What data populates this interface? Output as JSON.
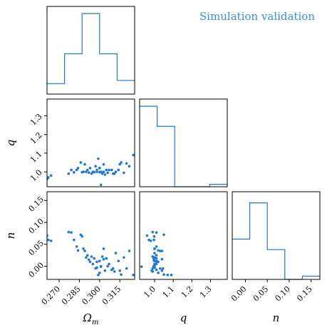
{
  "title": "Simulation validation",
  "colors": {
    "series": "#1f77d4",
    "title": "#3a8fd8"
  },
  "chart_data": {
    "type": "scatter",
    "variables": [
      {
        "name": "Omega_m",
        "label": "Ωm",
        "range": [
          0.261,
          0.326
        ],
        "ticks": [
          "0.270",
          "0.285",
          "0.300",
          "0.315"
        ],
        "tick_values": [
          0.27,
          0.285,
          0.3,
          0.315
        ]
      },
      {
        "name": "q",
        "label": "q",
        "range": [
          0.92,
          1.39
        ],
        "ticks_x": [
          "1.0",
          "1.1",
          "1.2",
          "1.3"
        ],
        "tick_values_x": [
          1.0,
          1.1,
          1.2,
          1.3
        ],
        "ticks_y": [
          "1.0",
          "1.1",
          "1.2",
          "1.3"
        ],
        "tick_values_y": [
          1.0,
          1.1,
          1.2,
          1.3
        ]
      },
      {
        "name": "n",
        "label": "n",
        "range": [
          -0.03,
          0.17
        ],
        "ticks": [
          "0.00",
          "0.05",
          "0.10",
          "0.15"
        ],
        "tick_values": [
          0.0,
          0.05,
          0.1,
          0.15
        ]
      }
    ],
    "histograms": {
      "Omega_m": {
        "edges": [
          0.261,
          0.274,
          0.287,
          0.3,
          0.313,
          0.326
        ],
        "heights": [
          0.13,
          0.5,
          1.0,
          0.5,
          0.17
        ]
      },
      "q": {
        "edges": [
          0.92,
          1.014,
          1.108,
          1.202,
          1.296,
          1.39
        ],
        "heights": [
          1.0,
          0.75,
          0.0,
          0.0,
          0.03
        ]
      },
      "n": {
        "edges": [
          -0.03,
          0.01,
          0.05,
          0.09,
          0.13,
          0.17
        ],
        "heights": [
          0.5,
          0.95,
          0.37,
          0.0,
          0.04
        ]
      }
    },
    "points": [
      {
        "Omega_m": 0.261,
        "q": 0.96,
        "n": 0.07
      },
      {
        "Omega_m": 0.262,
        "q": 0.97,
        "n": 0.06
      },
      {
        "Omega_m": 0.264,
        "q": 0.98,
        "n": 0.058
      },
      {
        "Omega_m": 0.277,
        "q": 0.99,
        "n": 0.078
      },
      {
        "Omega_m": 0.279,
        "q": 1.01,
        "n": 0.077
      },
      {
        "Omega_m": 0.281,
        "q": 0.997,
        "n": 0.06
      },
      {
        "Omega_m": 0.283,
        "q": 1.01,
        "n": 0.045
      },
      {
        "Omega_m": 0.284,
        "q": 1.02,
        "n": 0.036
      },
      {
        "Omega_m": 0.286,
        "q": 1.05,
        "n": 0.072
      },
      {
        "Omega_m": 0.287,
        "q": 0.998,
        "n": 0.068
      },
      {
        "Omega_m": 0.288,
        "q": 1.0,
        "n": 0.04
      },
      {
        "Omega_m": 0.289,
        "q": 1.04,
        "n": 0.035
      },
      {
        "Omega_m": 0.29,
        "q": 1.0,
        "n": 0.02
      },
      {
        "Omega_m": 0.291,
        "q": 1.01,
        "n": 0.025
      },
      {
        "Omega_m": 0.292,
        "q": 0.996,
        "n": 0.015
      },
      {
        "Omega_m": 0.293,
        "q": 1.02,
        "n": 0.01
      },
      {
        "Omega_m": 0.294,
        "q": 0.99,
        "n": 0.022
      },
      {
        "Omega_m": 0.295,
        "q": 1.0,
        "n": 0.005
      },
      {
        "Omega_m": 0.296,
        "q": 0.998,
        "n": 0.018
      },
      {
        "Omega_m": 0.297,
        "q": 1.03,
        "n": -0.005
      },
      {
        "Omega_m": 0.298,
        "q": 1.0,
        "n": -0.003
      },
      {
        "Omega_m": 0.298,
        "q": 1.01,
        "n": 0.01
      },
      {
        "Omega_m": 0.299,
        "q": 1.07,
        "n": -0.02
      },
      {
        "Omega_m": 0.3,
        "q": 0.998,
        "n": 0.012
      },
      {
        "Omega_m": 0.3,
        "q": 1.02,
        "n": -0.015
      },
      {
        "Omega_m": 0.301,
        "q": 1.0,
        "n": 0.0
      },
      {
        "Omega_m": 0.302,
        "q": 0.99,
        "n": 0.022
      },
      {
        "Omega_m": 0.303,
        "q": 1.04,
        "n": 0.016
      },
      {
        "Omega_m": 0.304,
        "q": 0.985,
        "n": -0.01
      },
      {
        "Omega_m": 0.305,
        "q": 1.01,
        "n": 0.018
      },
      {
        "Omega_m": 0.306,
        "q": 0.995,
        "n": 0.0
      },
      {
        "Omega_m": 0.307,
        "q": 1.01,
        "n": 0.005
      },
      {
        "Omega_m": 0.309,
        "q": 1.01,
        "n": -0.008
      },
      {
        "Omega_m": 0.31,
        "q": 0.99,
        "n": -0.005
      },
      {
        "Omega_m": 0.311,
        "q": 0.99,
        "n": -0.012
      },
      {
        "Omega_m": 0.312,
        "q": 1.0,
        "n": 0.03
      },
      {
        "Omega_m": 0.314,
        "q": 1.01,
        "n": 0.012
      },
      {
        "Omega_m": 0.315,
        "q": 1.04,
        "n": -0.01
      },
      {
        "Omega_m": 0.316,
        "q": 1.05,
        "n": -0.019
      },
      {
        "Omega_m": 0.318,
        "q": 0.995,
        "n": 0.02
      },
      {
        "Omega_m": 0.32,
        "q": 1.045,
        "n": -0.005
      },
      {
        "Omega_m": 0.322,
        "q": 1.03,
        "n": 0.035
      },
      {
        "Omega_m": 0.325,
        "q": 1.09,
        "n": -0.02
      },
      {
        "Omega_m": 0.301,
        "q": 0.93,
        "n": -0.001
      },
      {
        "Omega_m": 0.303,
        "q": 1.0,
        "n": 0.04
      }
    ]
  }
}
